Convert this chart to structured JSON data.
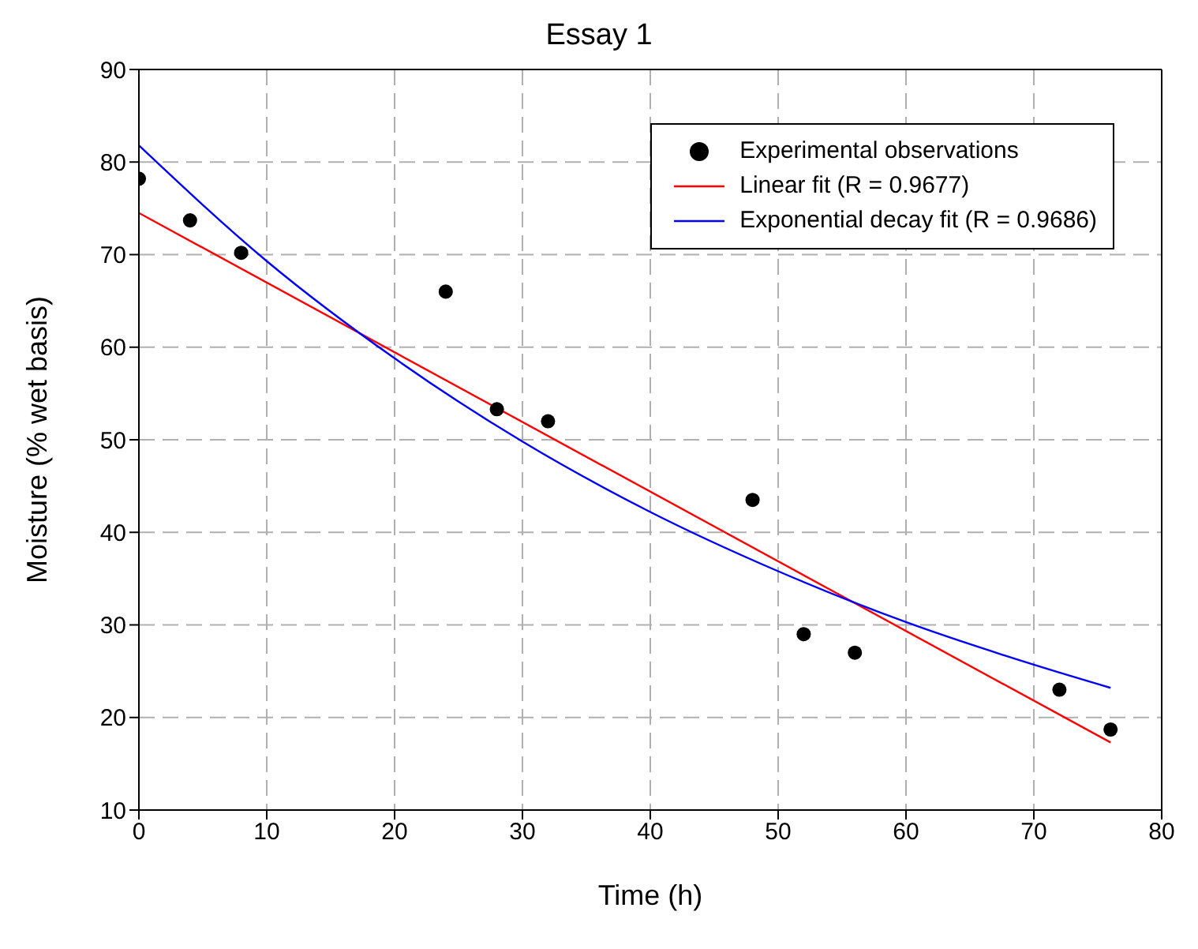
{
  "chart_data": {
    "type": "scatter",
    "title": "Essay 1",
    "xlabel": "Time (h)",
    "ylabel": "Moisture (% wet basis)",
    "xlim": [
      0,
      80
    ],
    "xticks": [
      0,
      10,
      20,
      30,
      40,
      50,
      60,
      70,
      80
    ],
    "ylim": [
      10,
      90
    ],
    "yticks": [
      10,
      20,
      30,
      40,
      50,
      60,
      70,
      80,
      90
    ],
    "grid": true,
    "legend": "top right",
    "series": [
      {
        "name": "Experimental observations",
        "marker": "circle",
        "color": "#000000",
        "x": [
          0,
          4,
          8,
          24,
          28,
          32,
          48,
          52,
          56,
          72,
          76
        ],
        "values": [
          78.2,
          73.7,
          70.2,
          66,
          53.3,
          52,
          43.5,
          29,
          27,
          23,
          18.7
        ]
      },
      {
        "name": "Linear fit (R = 0.9677)",
        "type": "line",
        "marker": "none",
        "color": "#ff0000",
        "x": [
          0,
          76
        ],
        "values": [
          74.5,
          17.3
        ]
      },
      {
        "name": "Exponential decay fit (R = 0.9686)",
        "type": "line",
        "marker": "none",
        "color": "#0000ff",
        "x": [
          0,
          10,
          20,
          30,
          40,
          50,
          60,
          70,
          76
        ],
        "values": [
          81.8,
          69.3,
          58.8,
          49.8,
          42.2,
          35.8,
          30.3,
          25.7,
          23.2
        ]
      }
    ]
  }
}
